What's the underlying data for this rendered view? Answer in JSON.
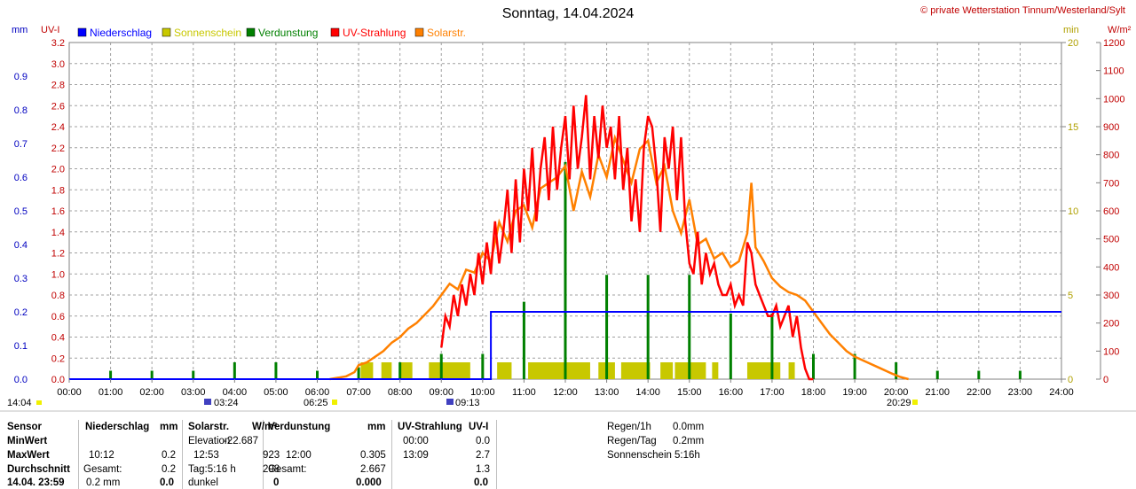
{
  "header": {
    "title": "Sonntag, 14.04.2024",
    "copyright": "© private Wetterstation Tinnum/Westerland/Sylt"
  },
  "legend": [
    {
      "label": "Niederschlag",
      "color": "#0000ff"
    },
    {
      "label": "Sonnenschein",
      "color": "#c8c800"
    },
    {
      "label": "Verdunstung",
      "color": "#008000"
    },
    {
      "label": "UV-Strahlung",
      "color": "#ff0000"
    },
    {
      "label": "Solarstr.",
      "color": "#ff8000"
    }
  ],
  "axis_units": {
    "mm": "mm",
    "uv": "UV-I",
    "min": "min",
    "wm2": "W/m²"
  },
  "markers": {
    "date": "14:04",
    "sunrise_label": "03:24",
    "dawn_label": "06:25",
    "peak_label": "09:13",
    "sunset_label": "20:29"
  },
  "chart_data": {
    "type": "line",
    "x_ticks": [
      "00:00",
      "01:00",
      "02:00",
      "03:00",
      "04:00",
      "05:00",
      "06:00",
      "07:00",
      "08:00",
      "09:00",
      "10:00",
      "11:00",
      "12:00",
      "13:00",
      "14:00",
      "15:00",
      "16:00",
      "17:00",
      "18:00",
      "19:00",
      "20:00",
      "21:00",
      "22:00",
      "23:00",
      "24:00"
    ],
    "axes": {
      "mm": {
        "min": 0,
        "max": 1.0,
        "ticks": [
          "0.0",
          "0.1",
          "0.2",
          "0.3",
          "0.4",
          "0.5",
          "0.6",
          "0.7",
          "0.8",
          "0.9"
        ]
      },
      "uv": {
        "min": 0,
        "max": 3.2,
        "ticks": [
          "0.0",
          "0.2",
          "0.4",
          "0.6",
          "0.8",
          "1.0",
          "1.2",
          "1.4",
          "1.6",
          "1.8",
          "2.0",
          "2.2",
          "2.4",
          "2.6",
          "2.8",
          "3.0",
          "3.2"
        ]
      },
      "min": {
        "min": 0,
        "max": 20,
        "ticks": [
          "0",
          "5",
          "10",
          "15",
          "20"
        ]
      },
      "wm2": {
        "min": 0,
        "max": 1200,
        "ticks": [
          "0",
          "100",
          "200",
          "300",
          "400",
          "500",
          "600",
          "700",
          "800",
          "900",
          "1000",
          "1100",
          "1200"
        ]
      }
    },
    "precipitation_mm": {
      "x": [
        0,
        10.2,
        10.2,
        24
      ],
      "y": [
        0,
        0,
        0.2,
        0.2
      ]
    },
    "sunshine_blocks": [
      [
        7.05,
        7.35
      ],
      [
        7.55,
        7.8
      ],
      [
        8.0,
        8.3
      ],
      [
        8.7,
        9.7
      ],
      [
        10.35,
        10.7
      ],
      [
        11.1,
        12.6
      ],
      [
        12.8,
        13.2
      ],
      [
        13.35,
        14.05
      ],
      [
        14.3,
        14.6
      ],
      [
        14.65,
        15.4
      ],
      [
        15.55,
        15.7
      ],
      [
        16.4,
        17.2
      ],
      [
        17.4,
        17.55
      ]
    ],
    "evaporation_spikes": [
      {
        "x": 1.0,
        "v": 0.5
      },
      {
        "x": 2.0,
        "v": 0.5
      },
      {
        "x": 3.0,
        "v": 0.5
      },
      {
        "x": 4.0,
        "v": 1.0
      },
      {
        "x": 5.0,
        "v": 1.0
      },
      {
        "x": 6.0,
        "v": 0.5
      },
      {
        "x": 7.0,
        "v": 0.7
      },
      {
        "x": 8.0,
        "v": 1.0
      },
      {
        "x": 9.0,
        "v": 1.5
      },
      {
        "x": 10.0,
        "v": 1.5
      },
      {
        "x": 11.0,
        "v": 4.6
      },
      {
        "x": 12.0,
        "v": 12.9
      },
      {
        "x": 13.0,
        "v": 6.2
      },
      {
        "x": 14.0,
        "v": 6.2
      },
      {
        "x": 15.0,
        "v": 6.2
      },
      {
        "x": 16.0,
        "v": 3.9
      },
      {
        "x": 17.0,
        "v": 3.9
      },
      {
        "x": 18.0,
        "v": 1.5
      },
      {
        "x": 19.0,
        "v": 1.5
      },
      {
        "x": 20.0,
        "v": 1.0
      },
      {
        "x": 21.0,
        "v": 0.5
      },
      {
        "x": 22.0,
        "v": 0.5
      },
      {
        "x": 23.0,
        "v": 0.5
      }
    ],
    "uv_index": {
      "x": [
        9.0,
        9.1,
        9.2,
        9.3,
        9.4,
        9.5,
        9.6,
        9.7,
        9.8,
        9.9,
        10.0,
        10.1,
        10.2,
        10.3,
        10.4,
        10.5,
        10.6,
        10.7,
        10.8,
        10.9,
        11.0,
        11.1,
        11.2,
        11.3,
        11.4,
        11.5,
        11.6,
        11.7,
        11.8,
        11.9,
        12.0,
        12.1,
        12.2,
        12.3,
        12.4,
        12.5,
        12.6,
        12.7,
        12.8,
        12.9,
        13.0,
        13.1,
        13.2,
        13.3,
        13.4,
        13.5,
        13.6,
        13.7,
        13.8,
        13.9,
        14.0,
        14.1,
        14.2,
        14.3,
        14.4,
        14.5,
        14.6,
        14.7,
        14.8,
        14.9,
        15.0,
        15.1,
        15.2,
        15.3,
        15.4,
        15.5,
        15.6,
        15.7,
        15.8,
        15.9,
        16.0,
        16.1,
        16.2,
        16.3,
        16.4,
        16.5,
        16.6,
        16.7,
        16.8,
        16.9,
        17.0,
        17.1,
        17.2,
        17.3,
        17.4,
        17.5,
        17.6,
        17.7,
        17.8,
        17.9,
        18.0
      ],
      "y": [
        0.3,
        0.6,
        0.5,
        0.8,
        0.6,
        0.9,
        0.7,
        1.0,
        0.8,
        1.2,
        0.9,
        1.3,
        1.0,
        1.5,
        1.1,
        1.4,
        1.8,
        1.2,
        1.9,
        1.3,
        2.0,
        1.6,
        2.2,
        1.5,
        2.0,
        2.3,
        1.7,
        2.4,
        1.8,
        2.2,
        2.5,
        1.9,
        2.6,
        2.0,
        2.3,
        2.7,
        1.9,
        2.5,
        2.1,
        2.6,
        2.2,
        2.4,
        1.9,
        2.5,
        1.8,
        2.2,
        1.5,
        1.9,
        1.4,
        2.2,
        2.5,
        2.4,
        2.0,
        1.4,
        2.3,
        2.0,
        2.4,
        1.7,
        2.3,
        1.5,
        1.1,
        1.0,
        1.4,
        0.9,
        1.2,
        1.0,
        1.1,
        0.9,
        0.8,
        0.8,
        0.9,
        0.7,
        0.8,
        0.7,
        1.3,
        1.2,
        0.9,
        0.8,
        0.7,
        0.6,
        0.6,
        0.7,
        0.5,
        0.6,
        0.7,
        0.4,
        0.6,
        0.3,
        0.1,
        0.0,
        0.0
      ]
    },
    "solar_wm2": {
      "x": [
        6.3,
        6.5,
        6.7,
        6.9,
        7.0,
        7.2,
        7.4,
        7.6,
        7.8,
        8.0,
        8.2,
        8.4,
        8.6,
        8.8,
        9.0,
        9.2,
        9.4,
        9.6,
        9.8,
        10.0,
        10.2,
        10.4,
        10.6,
        10.8,
        11.0,
        11.2,
        11.4,
        11.6,
        11.8,
        12.0,
        12.2,
        12.4,
        12.6,
        12.8,
        13.0,
        13.2,
        13.4,
        13.6,
        13.8,
        14.0,
        14.2,
        14.4,
        14.6,
        14.8,
        15.0,
        15.2,
        15.4,
        15.6,
        15.8,
        16.0,
        16.2,
        16.4,
        16.5,
        16.6,
        16.8,
        17.0,
        17.2,
        17.4,
        17.6,
        17.8,
        18.0,
        18.2,
        18.4,
        18.6,
        18.8,
        19.0,
        19.3,
        19.6,
        19.9,
        20.1,
        20.3
      ],
      "y": [
        0,
        5,
        10,
        25,
        50,
        60,
        80,
        100,
        130,
        150,
        180,
        200,
        230,
        260,
        300,
        340,
        320,
        390,
        380,
        450,
        420,
        560,
        490,
        600,
        620,
        540,
        680,
        700,
        720,
        760,
        600,
        740,
        650,
        800,
        720,
        860,
        780,
        700,
        820,
        850,
        700,
        760,
        600,
        520,
        640,
        480,
        500,
        430,
        450,
        400,
        420,
        520,
        700,
        470,
        420,
        360,
        330,
        310,
        300,
        280,
        240,
        200,
        160,
        130,
        100,
        80,
        60,
        40,
        20,
        8,
        0
      ]
    }
  },
  "stats": {
    "sensor": {
      "header": "Sensor",
      "rows": [
        "MinWert",
        "MaxWert",
        "Durchschnitt",
        "14.04. 23:59"
      ]
    },
    "niederschlag": {
      "header": "Niederschlag",
      "unit": "mm",
      "max_time": "10:12",
      "max_val": "0.2",
      "sum_label": "Gesamt:",
      "sum_val": "0.2",
      "last_left": "0.2 mm",
      "last_val": "0.0"
    },
    "solar": {
      "header": "Solarstr.",
      "unit": "W/m²",
      "min_label": "Elevation",
      "min_val": "-22.687",
      "max_time": "12:53",
      "max_val": "923",
      "avg_label": "Tag:5:16 h",
      "avg_val": "298",
      "last_label": "dunkel",
      "last_val": "0"
    },
    "verdunstung": {
      "header": "Verdunstung",
      "unit": "mm",
      "max_time": "12:00",
      "max_val": "0.305",
      "sum_label": "Gesamt:",
      "sum_val": "2.667",
      "last_val": "0.000"
    },
    "uv": {
      "header": "UV-Strahlung",
      "unit": "UV-I",
      "min_time": "00:00",
      "min_val": "0.0",
      "max_time": "13:09",
      "max_val": "2.7",
      "avg_val": "1.3",
      "last_val": "0.0"
    },
    "summary": [
      {
        "label": "Regen/1h",
        "value": "0.0mm"
      },
      {
        "label": "Regen/Tag",
        "value": "0.2mm"
      },
      {
        "label": "Sonnenschein",
        "value": "5:16h"
      }
    ]
  }
}
